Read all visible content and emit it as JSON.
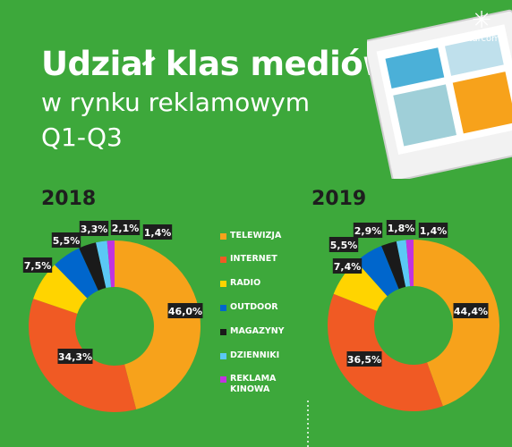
{
  "header": {
    "title": "Udział klas mediów",
    "subtitle_line1": "w rynku reklamowym",
    "subtitle_line2": "Q1-Q3"
  },
  "logo": {
    "text": "Starcom",
    "icon": "starcom-star-icon"
  },
  "legend": {
    "items": [
      {
        "label": "TELEWIZJA",
        "color": "#f7a21b"
      },
      {
        "label": "INTERNET",
        "color": "#f05a24"
      },
      {
        "label": "RADIO",
        "color": "#ffd400"
      },
      {
        "label": "OUTDOOR",
        "color": "#0066cc"
      },
      {
        "label": "MAGAZYNY",
        "color": "#1a1a1a"
      },
      {
        "label": "DZIENNIKI",
        "color": "#5bc8f5"
      },
      {
        "label": "REKLAMA KINOWA",
        "color": "#c233e0"
      }
    ]
  },
  "chart_data": [
    {
      "type": "pie",
      "title": "2018",
      "categories": [
        "TELEWIZJA",
        "INTERNET",
        "RADIO",
        "OUTDOOR",
        "MAGAZYNY",
        "DZIENNIKI",
        "REKLAMA KINOWA"
      ],
      "values": [
        46.0,
        34.3,
        7.5,
        5.5,
        3.3,
        2.1,
        1.4
      ],
      "labels": [
        "46,0%",
        "34,3%",
        "7,5%",
        "5,5%",
        "3,3%",
        "2,1%",
        "1,4%"
      ],
      "donut": true
    },
    {
      "type": "pie",
      "title": "2019",
      "categories": [
        "TELEWIZJA",
        "INTERNET",
        "RADIO",
        "OUTDOOR",
        "MAGAZYNY",
        "DZIENNIKI",
        "REKLAMA KINOWA"
      ],
      "values": [
        44.4,
        36.5,
        7.4,
        5.5,
        2.9,
        1.8,
        1.4
      ],
      "labels": [
        "44,4%",
        "36,5%",
        "7,4%",
        "5,5%",
        "2,9%",
        "1,8%",
        "1,4%"
      ],
      "donut": true
    }
  ]
}
